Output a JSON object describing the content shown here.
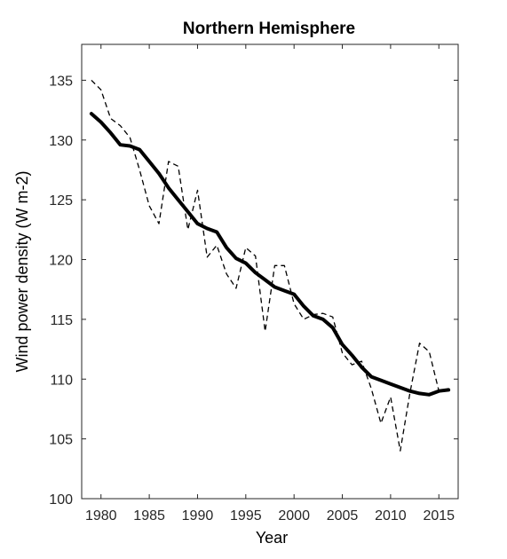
{
  "chart_data": {
    "type": "line",
    "title": "Northern Hemisphere",
    "xlabel": "Year",
    "ylabel": "Wind power density  (W m-2)",
    "xlim": [
      1978,
      2017
    ],
    "ylim": [
      100,
      138
    ],
    "xticks": [
      1980,
      1985,
      1990,
      1995,
      2000,
      2005,
      2010,
      2015
    ],
    "yticks": [
      100,
      105,
      110,
      115,
      120,
      125,
      130,
      135
    ],
    "grid": false,
    "legend": "none",
    "series": [
      {
        "style": "dashed",
        "color": "#000000",
        "x": [
          1979,
          1980,
          1981,
          1982,
          1983,
          1984,
          1985,
          1986,
          1987,
          1988,
          1989,
          1990,
          1991,
          1992,
          1993,
          1994,
          1995,
          1996,
          1997,
          1998,
          1999,
          2000,
          2001,
          2002,
          2003,
          2004,
          2005,
          2006,
          2007,
          2008,
          2009,
          2010,
          2011,
          2012,
          2013,
          2014,
          2015,
          2016
        ],
        "y": [
          135.0,
          134.2,
          131.8,
          131.2,
          130.2,
          127.5,
          124.5,
          123.0,
          128.2,
          127.8,
          122.5,
          125.8,
          120.2,
          121.2,
          118.8,
          117.6,
          121.0,
          120.3,
          114.0,
          119.5,
          119.5,
          116.3,
          115.0,
          115.4,
          115.5,
          115.2,
          112.2,
          111.2,
          111.5,
          109.2,
          106.3,
          108.5,
          104.0,
          108.8,
          113.0,
          112.3,
          109.0,
          109.2
        ]
      },
      {
        "style": "solid",
        "color": "#000000",
        "x": [
          1979,
          1980,
          1981,
          1982,
          1983,
          1984,
          1985,
          1986,
          1987,
          1988,
          1989,
          1990,
          1991,
          1992,
          1993,
          1994,
          1995,
          1996,
          1997,
          1998,
          1999,
          2000,
          2001,
          2002,
          2003,
          2004,
          2005,
          2006,
          2007,
          2008,
          2009,
          2010,
          2011,
          2012,
          2013,
          2014,
          2015,
          2016
        ],
        "y": [
          132.2,
          131.5,
          130.6,
          129.6,
          129.5,
          129.2,
          128.2,
          127.2,
          126.0,
          125.0,
          124.0,
          123.0,
          122.6,
          122.3,
          121.0,
          120.1,
          119.7,
          118.9,
          118.3,
          117.7,
          117.4,
          117.1,
          116.1,
          115.3,
          115.0,
          114.3,
          112.9,
          112.0,
          111.0,
          110.2,
          109.9,
          109.6,
          109.3,
          109.0,
          108.8,
          108.7,
          109.0,
          109.1
        ]
      }
    ]
  }
}
